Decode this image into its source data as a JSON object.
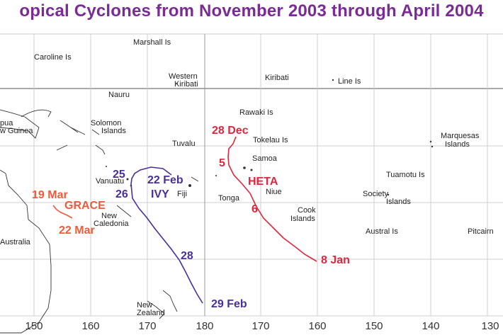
{
  "title": "opical Cyclones from November 2003 through April 2004",
  "places": {
    "marshall": "Marshall Is",
    "caroline": "Caroline Is",
    "western": "Western",
    "kiribati_w": "Kiribati",
    "kiribati": "Kiribati",
    "line": "Line Is",
    "nauru": "Nauru",
    "rawaki": "Rawaki Is",
    "papua1": "pua",
    "papua2": "w Guinea",
    "solomon1": "Solomon",
    "solomon2": "Islands",
    "tuvalu": "Tuvalu",
    "tokelau": "Tokelau Is",
    "marquesas1": "Marquesas",
    "marquesas2": "Islands",
    "samoa": "Samoa",
    "tuamotu": "Tuamotu Is",
    "vanuatu": "Vanuatu",
    "fiji": "Fiji",
    "tonga": "Tonga",
    "niue": "Niue",
    "society1": "Society",
    "society2": "Islands",
    "newcal1": "New",
    "newcal2": "Caledonia",
    "cook1": "Cook",
    "cook2": "Islands",
    "australia": "Australia",
    "austral": "Austral Is",
    "pitcairn": "Pitcairn",
    "nz1": "New",
    "nz2": "Zealand"
  },
  "cyclones": {
    "ivy": {
      "name": "IVY",
      "labels": [
        "22 Feb",
        "25",
        "26",
        "28",
        "29 Feb"
      ],
      "color": "#4a2f9a"
    },
    "heta": {
      "name": "HETA",
      "labels": [
        "28 Dec",
        "5",
        "6",
        "8 Jan"
      ],
      "color": "#e0263c"
    },
    "grace": {
      "name": "GRACE",
      "labels": [
        "19 Mar",
        "22 Mar"
      ],
      "color": "#ef5a3a"
    }
  },
  "x_ticks": [
    "150",
    "160",
    "170",
    "180",
    "170",
    "160",
    "150",
    "140",
    "130"
  ]
}
